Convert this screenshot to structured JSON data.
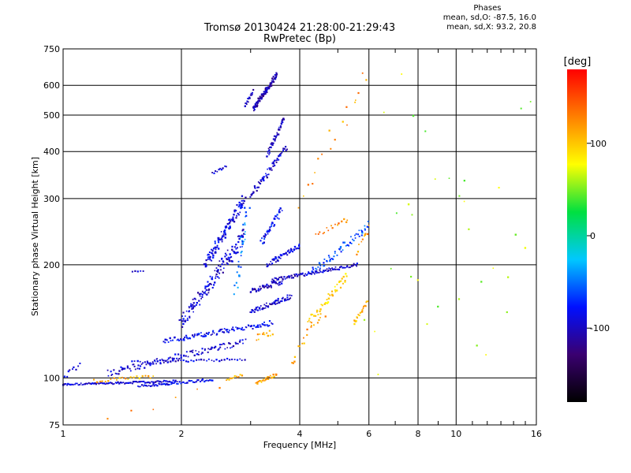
{
  "header": {
    "title_line1": "Tromsø 20130424 21:28:00-21:29:43",
    "title_line2": "RwPretec (Bp)"
  },
  "phases_box": {
    "title": "Phases",
    "line_O": "mean, sd,O: -87.5, 16.0",
    "line_X": "mean, sd,X: 93.2, 20.8"
  },
  "colorbar": {
    "label": "[deg]",
    "ticks": [
      {
        "value": 100,
        "label": "100"
      },
      {
        "value": 0,
        "label": "0"
      },
      {
        "value": -100,
        "label": "-100"
      }
    ],
    "range": [
      -180,
      180
    ],
    "colors": [
      "#000000",
      "#3a0070",
      "#0010ff",
      "#00c8ff",
      "#00e040",
      "#ffff00",
      "#ff8000",
      "#ff0000"
    ]
  },
  "chart_data": {
    "type": "scatter",
    "xlabel": "Frequency [MHz]",
    "ylabel": "Stationary phase Virtual Height [km]",
    "xscale": "log",
    "yscale": "log",
    "xlim": [
      1,
      16
    ],
    "ylim": [
      75,
      750
    ],
    "grid": true,
    "xticks": [
      {
        "value": 1,
        "label": "1"
      },
      {
        "value": 2,
        "label": "2"
      },
      {
        "value": 4,
        "label": "4"
      },
      {
        "value": 6,
        "label": "6"
      },
      {
        "value": 8,
        "label": "8"
      },
      {
        "value": 10,
        "label": "10"
      },
      {
        "value": 16,
        "label": "16"
      }
    ],
    "yticks": [
      {
        "value": 75,
        "label": "75"
      },
      {
        "value": 100,
        "label": "100"
      },
      {
        "value": 200,
        "label": "200"
      },
      {
        "value": 300,
        "label": "300"
      },
      {
        "value": 400,
        "label": "400"
      },
      {
        "value": 500,
        "label": "500"
      },
      {
        "value": 600,
        "label": "600"
      },
      {
        "value": 750,
        "label": "750"
      }
    ],
    "traces": [
      {
        "f0": 1.0,
        "f1": 1.95,
        "h0": 96,
        "h1": 98,
        "phase": -95,
        "n": 90,
        "spread": 0.012
      },
      {
        "f0": 1.55,
        "f1": 2.4,
        "h0": 95,
        "h1": 99,
        "phase": -85,
        "n": 55,
        "spread": 0.015
      },
      {
        "f0": 1.0,
        "f1": 1.1,
        "h0": 100,
        "h1": 108,
        "phase": -95,
        "n": 10,
        "spread": 0.03
      },
      {
        "f0": 1.2,
        "f1": 1.7,
        "h0": 98,
        "h1": 101,
        "phase": 110,
        "n": 22,
        "spread": 0.02
      },
      {
        "f0": 2.6,
        "f1": 2.85,
        "h0": 99,
        "h1": 102,
        "phase": 110,
        "n": 12,
        "spread": 0.015
      },
      {
        "f0": 3.1,
        "f1": 3.5,
        "h0": 97,
        "h1": 102,
        "phase": 115,
        "n": 26,
        "spread": 0.02
      },
      {
        "f0": 1.3,
        "f1": 2.9,
        "h0": 103,
        "h1": 125,
        "phase": -95,
        "n": 110,
        "spread": 0.04
      },
      {
        "f0": 1.5,
        "f1": 2.9,
        "h0": 110,
        "h1": 112,
        "phase": -90,
        "n": 45,
        "spread": 0.015
      },
      {
        "f0": 1.8,
        "f1": 3.4,
        "h0": 125,
        "h1": 140,
        "phase": -85,
        "n": 100,
        "spread": 0.03
      },
      {
        "f0": 2.0,
        "f1": 2.9,
        "h0": 140,
        "h1": 240,
        "phase": -95,
        "n": 150,
        "spread": 0.08
      },
      {
        "f0": 2.3,
        "f1": 2.9,
        "h0": 200,
        "h1": 300,
        "phase": -90,
        "n": 120,
        "spread": 0.06
      },
      {
        "f0": 2.75,
        "f1": 2.95,
        "h0": 170,
        "h1": 290,
        "phase": -50,
        "n": 30,
        "spread": 0.08
      },
      {
        "f0": 3.0,
        "f1": 3.8,
        "h0": 150,
        "h1": 165,
        "phase": -100,
        "n": 60,
        "spread": 0.03
      },
      {
        "f0": 3.0,
        "f1": 3.6,
        "h0": 170,
        "h1": 180,
        "phase": -100,
        "n": 45,
        "spread": 0.03
      },
      {
        "f0": 3.4,
        "f1": 5.6,
        "h0": 182,
        "h1": 200,
        "phase": -95,
        "n": 90,
        "spread": 0.02
      },
      {
        "f0": 3.3,
        "f1": 4.0,
        "h0": 200,
        "h1": 225,
        "phase": -90,
        "n": 50,
        "spread": 0.03
      },
      {
        "f0": 3.2,
        "f1": 3.6,
        "h0": 230,
        "h1": 280,
        "phase": -80,
        "n": 40,
        "spread": 0.04
      },
      {
        "f0": 4.3,
        "f1": 6.0,
        "h0": 190,
        "h1": 255,
        "phase": -60,
        "n": 60,
        "spread": 0.05
      },
      {
        "f0": 4.2,
        "f1": 5.3,
        "h0": 140,
        "h1": 188,
        "phase": 95,
        "n": 45,
        "spread": 0.05
      },
      {
        "f0": 5.5,
        "f1": 5.95,
        "h0": 140,
        "h1": 160,
        "phase": 110,
        "n": 20,
        "spread": 0.02
      },
      {
        "f0": 4.4,
        "f1": 5.3,
        "h0": 240,
        "h1": 265,
        "phase": 125,
        "n": 16,
        "spread": 0.03
      },
      {
        "f0": 3.0,
        "f1": 3.7,
        "h0": 305,
        "h1": 410,
        "phase": -95,
        "n": 60,
        "spread": 0.04
      },
      {
        "f0": 3.3,
        "f1": 3.65,
        "h0": 390,
        "h1": 490,
        "phase": -100,
        "n": 50,
        "spread": 0.03
      },
      {
        "f0": 3.05,
        "f1": 3.5,
        "h0": 520,
        "h1": 640,
        "phase": -105,
        "n": 100,
        "spread": 0.03
      },
      {
        "f0": 2.9,
        "f1": 3.05,
        "h0": 530,
        "h1": 580,
        "phase": -100,
        "n": 16,
        "spread": 0.02
      },
      {
        "f0": 2.4,
        "f1": 2.6,
        "h0": 350,
        "h1": 365,
        "phase": -95,
        "n": 10,
        "spread": 0.015
      },
      {
        "f0": 1.5,
        "f1": 1.6,
        "h0": 192,
        "h1": 192,
        "phase": -100,
        "n": 5,
        "spread": 0.005
      },
      {
        "f0": 3.1,
        "f1": 3.4,
        "h0": 128,
        "h1": 132,
        "phase": 110,
        "n": 12,
        "spread": 0.04
      },
      {
        "f0": 3.8,
        "f1": 4.6,
        "h0": 110,
        "h1": 150,
        "phase": 115,
        "n": 20,
        "spread": 0.08
      },
      {
        "f0": 5.6,
        "f1": 6.0,
        "h0": 215,
        "h1": 250,
        "phase": 120,
        "n": 10,
        "spread": 0.04
      },
      {
        "f0": 4.0,
        "f1": 6.0,
        "h0": 300,
        "h1": 650,
        "phase": 120,
        "n": 18,
        "spread": 0.12
      },
      {
        "f0": 6.0,
        "f1": 15.8,
        "h0": 90,
        "h1": 650,
        "phase": 60,
        "n": 34,
        "spread": 0.4
      },
      {
        "f0": 1.3,
        "f1": 2.5,
        "h0": 78,
        "h1": 95,
        "phase": 120,
        "n": 6,
        "spread": 0.05
      }
    ]
  }
}
